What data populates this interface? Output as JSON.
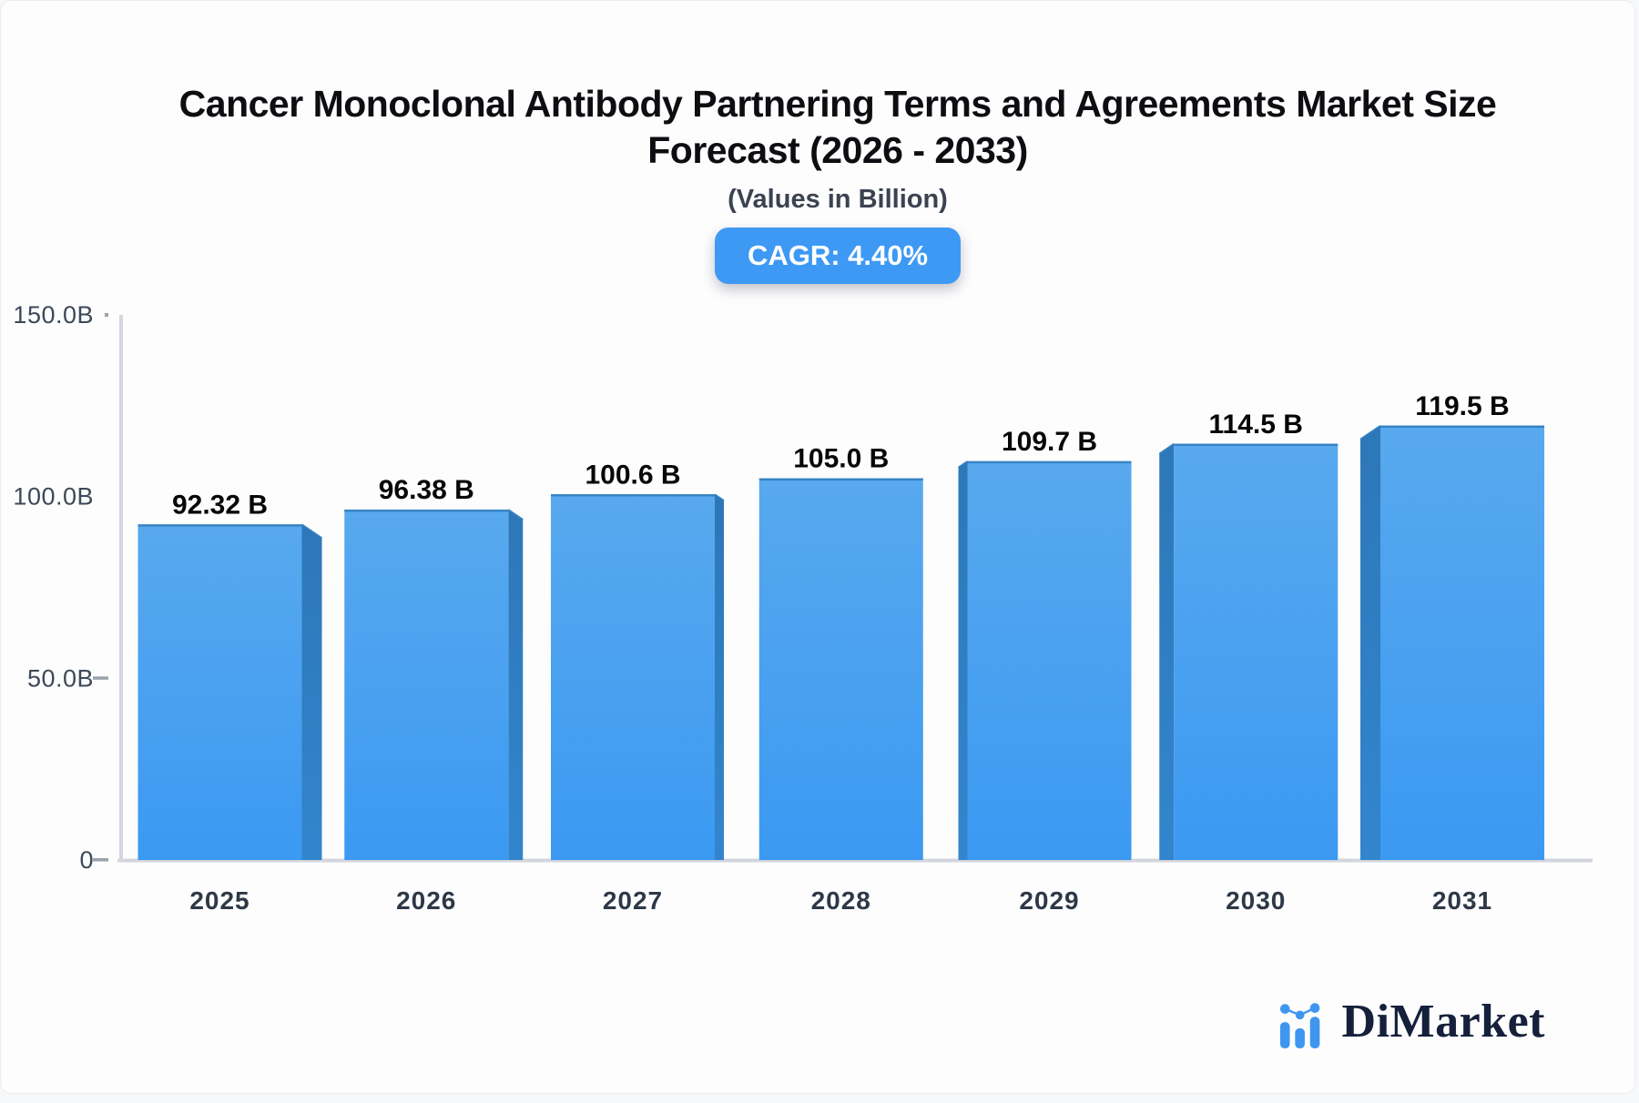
{
  "header": {
    "title_line1": "Cancer Monoclonal Antibody Partnering Terms and Agreements Market Size",
    "title_line2": "Forecast (2026 - 2033)",
    "subtitle": "(Values in Billion)",
    "cagr_badge": "CAGR: 4.40%"
  },
  "chart_data": {
    "type": "bar",
    "title": "Cancer Monoclonal Antibody Partnering Terms and Agreements Market Size Forecast (2026 - 2033)",
    "subtitle": "(Values in Billion)",
    "cagr_percent": 4.4,
    "categories": [
      "2025",
      "2026",
      "2027",
      "2028",
      "2029",
      "2030",
      "2031"
    ],
    "values": [
      92.32,
      96.38,
      100.6,
      105.0,
      109.7,
      114.5,
      119.5
    ],
    "value_labels": [
      "92.32 B",
      "96.38 B",
      "100.6 B",
      "105.0 B",
      "109.7 B",
      "114.5 B",
      "119.5 B"
    ],
    "xlabel": "",
    "ylabel": "",
    "grid": false,
    "legend": "none",
    "y_axis": {
      "max": 150,
      "ticks": [
        {
          "value": 0,
          "label": "0",
          "mark": "dash"
        },
        {
          "value": 50,
          "label": "50.0B",
          "mark": "dash"
        },
        {
          "value": 100,
          "label": "100.0B",
          "mark": "none"
        },
        {
          "value": 150,
          "label": "150.0B",
          "mark": "dot"
        }
      ]
    },
    "style": "3d-extruded-bars"
  },
  "colors": {
    "bar_face_top": "#58a9ee",
    "bar_face_bottom": "#3b99f2",
    "bar_side_top": "#2d77b8",
    "bar_side_bottom": "#3285cd",
    "bar_top_edge": "#2f7dbd",
    "badge_bg": "#3d99f4",
    "axis_line": "#d3d6dc",
    "tick_mark": "#9aa2ae",
    "y_label": "#3d4958",
    "x_label": "#2e3947",
    "value_label": "#070707",
    "logo_blue": "#3f96ef",
    "logo_navy": "#15203b"
  },
  "logo": {
    "text": "DiMarket"
  }
}
